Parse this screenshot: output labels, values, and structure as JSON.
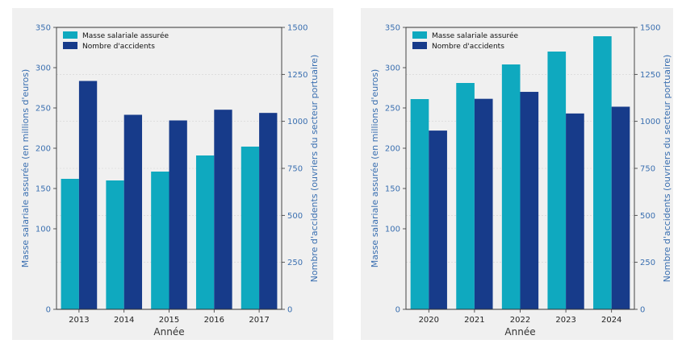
{
  "colors": {
    "payroll": "#0fa9bf",
    "accidents": "#173b8a",
    "axis_text": "#3a6fb0",
    "panel_bg": "#f0f0f0"
  },
  "chart_data": [
    {
      "type": "bar",
      "categories": [
        "2013",
        "2014",
        "2015",
        "2016",
        "2017"
      ],
      "series": [
        {
          "name": "Masse salariale assurée",
          "axis": "left",
          "values": [
            162,
            160,
            171,
            191,
            202
          ]
        },
        {
          "name": "Nombre d'accidents",
          "axis": "right",
          "values": [
            1215,
            1035,
            1005,
            1062,
            1045
          ]
        }
      ],
      "xlabel": "Année",
      "ylabel": "Masse salariale assurée (en millions d'euros)",
      "ylabel_right": "Nombre d'accidents (ouvriers du secteur portuaire)",
      "ylim": [
        0,
        350
      ],
      "ylim_right": [
        0,
        1500
      ],
      "yticks": [
        "0",
        "100",
        "150",
        "200",
        "250",
        "300",
        "350"
      ],
      "yticks_right": [
        "0",
        "250",
        "500",
        "750",
        "1000",
        "1250",
        "1500"
      ],
      "legend": "top-left",
      "grid": true
    },
    {
      "type": "bar",
      "categories": [
        "2020",
        "2021",
        "2022",
        "2023",
        "2024"
      ],
      "series": [
        {
          "name": "Masse salariale assurée",
          "axis": "left",
          "values": [
            261,
            281,
            304,
            320,
            339
          ]
        },
        {
          "name": "Nombre d'accidents",
          "axis": "right",
          "values": [
            951,
            1120,
            1157,
            1042,
            1078
          ]
        }
      ],
      "xlabel": "Année",
      "ylabel": "Masse salariale assurée (en millions d'euros)",
      "ylabel_right": "Nombre d'accidents (ouvriers du secteur portuaire)",
      "ylim": [
        0,
        350
      ],
      "ylim_right": [
        0,
        1500
      ],
      "yticks": [
        "0",
        "100",
        "150",
        "200",
        "250",
        "300",
        "350"
      ],
      "yticks_right": [
        "0",
        "250",
        "500",
        "750",
        "1000",
        "1250",
        "1500"
      ],
      "legend": "top-left",
      "grid": true
    }
  ]
}
